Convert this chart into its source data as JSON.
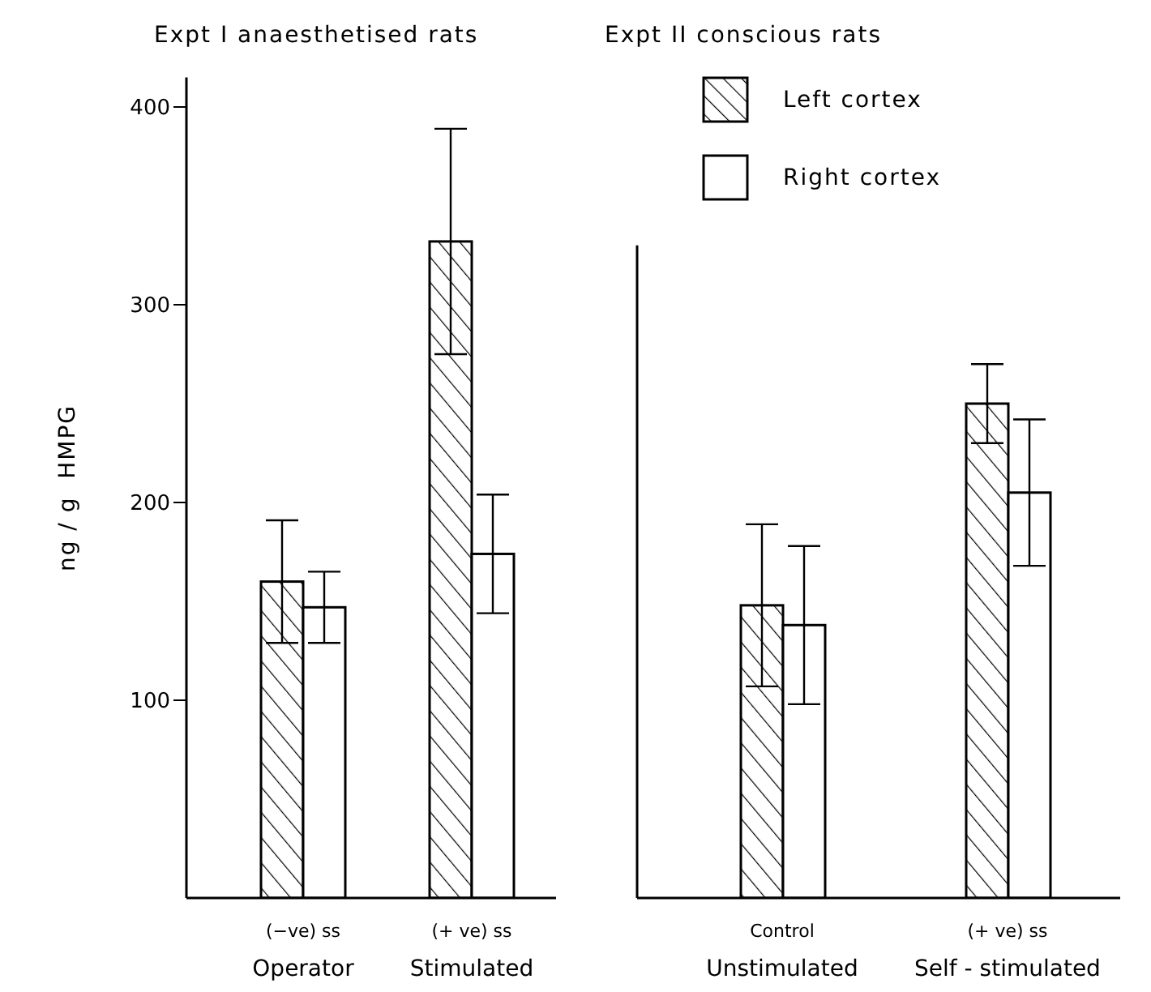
{
  "chart_data": [
    {
      "type": "bar",
      "title": "Expt I anaesthetised rats",
      "ylabel": "ng / g  HMPG",
      "categories": [
        "(−ve) ss\nOperator",
        "(+ ve) ss\nStimulated"
      ],
      "series": [
        {
          "color": "#ffffff",
          "values": [
            160,
            332
          ],
          "errors": [
            31,
            57
          ]
        },
        {
          "color": "#ffffff",
          "values": [
            147,
            174
          ],
          "errors": [
            18,
            30
          ]
        }
      ],
      "ylim": [
        0,
        415
      ],
      "yticks": [
        100,
        200,
        300,
        400
      ],
      "grid": false,
      "legend": false
    },
    {
      "type": "bar",
      "title": "Expt II conscious rats",
      "categories": [
        "Control\nUnstimulated",
        "(+ ve) ss\nSelf - stimulated"
      ],
      "series": [
        {
          "name": "Left cortex",
          "color": "#ffffff",
          "values": [
            148,
            250
          ],
          "errors": [
            41,
            20
          ]
        },
        {
          "name": "Right cortex",
          "color": "#ffffff",
          "values": [
            138,
            205
          ],
          "errors": [
            40,
            37
          ]
        }
      ],
      "ylim": [
        0,
        330
      ],
      "yticks": [
        100,
        200,
        300
      ],
      "tick_labels": "x",
      "grid": false,
      "legend": "top"
    }
  ]
}
